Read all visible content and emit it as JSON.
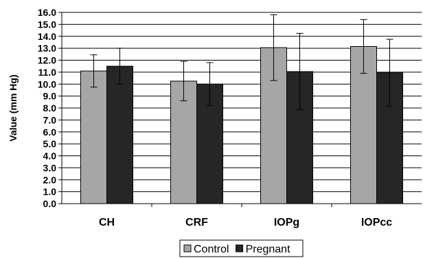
{
  "chart_data": {
    "type": "bar",
    "title": "",
    "xlabel": "",
    "ylabel": "Value (mm Hg)",
    "ylim": [
      0,
      16
    ],
    "ytick_step": 1,
    "ytick_labels": [
      "0.0",
      "1.0",
      "2.0",
      "3.0",
      "4.0",
      "5.0",
      "6.0",
      "7.0",
      "8.0",
      "9.0",
      "10.0",
      "11.0",
      "12.0",
      "13.0",
      "14.0",
      "15.0",
      "16.0"
    ],
    "categories": [
      "CH",
      "CRF",
      "IOPg",
      "IOPcc"
    ],
    "grid": true,
    "legend_position": "bottom",
    "series": [
      {
        "name": "Control",
        "color": "#a6a6a6",
        "values": [
          11.1,
          10.25,
          13.05,
          13.15
        ],
        "errors": [
          1.35,
          1.65,
          2.75,
          2.25
        ]
      },
      {
        "name": "Pregnant",
        "color": "#262626",
        "values": [
          11.5,
          10.0,
          11.05,
          10.95
        ],
        "errors": [
          1.5,
          1.8,
          3.2,
          2.8
        ]
      }
    ]
  }
}
